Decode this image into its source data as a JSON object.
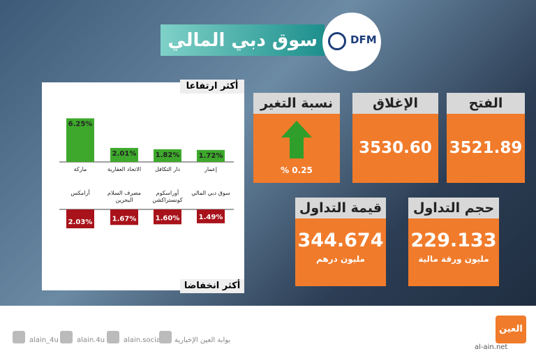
{
  "header": {
    "title": "سوق دبي المالي",
    "logo": "DFM"
  },
  "cards": {
    "open": {
      "label": "الفتح",
      "value": "3521.89"
    },
    "close": {
      "label": "الإغلاق",
      "value": "3530.60"
    },
    "change": {
      "label": "نسبة التغير",
      "value": "% 0.25"
    },
    "volume": {
      "label": "حجم التداول",
      "value": "229.133",
      "unit": "مليون ورقة مالية"
    },
    "turnover": {
      "label": "قيمة التداول",
      "value": "344.674",
      "unit": "مليون درهم"
    }
  },
  "chart_data": [
    {
      "type": "bar",
      "title": "أكثر ارتفاعا",
      "categories": [
        "ماركة",
        "الاتحاد العقارية",
        "دار التكافل",
        "إعمار"
      ],
      "values": [
        6.25,
        2.01,
        1.82,
        1.72
      ],
      "value_labels": [
        "6.25%",
        "2.01%",
        "1.82%",
        "1.72%"
      ],
      "color": "#3ea82c",
      "ylim": [
        0,
        7
      ]
    },
    {
      "type": "bar",
      "title": "أكثر انخفاضا",
      "categories": [
        "أرامكس",
        "مصرف السلام البحرين",
        "أوراسكوم كونستراكشن",
        "سوق دبي المالي"
      ],
      "values": [
        -2.03,
        -1.67,
        -1.6,
        -1.49
      ],
      "value_labels": [
        "2.03%",
        "1.67%",
        "1.60%",
        "1.49%"
      ],
      "color": "#a8121a",
      "ylim": [
        -3,
        0
      ]
    }
  ],
  "footer": {
    "twitter": "alain_4u",
    "instagram": "alain.4u",
    "facebook": "alain.social",
    "portal": "بوابة العين الإخبارية",
    "site": "al-ain.net",
    "brand": "العين"
  }
}
